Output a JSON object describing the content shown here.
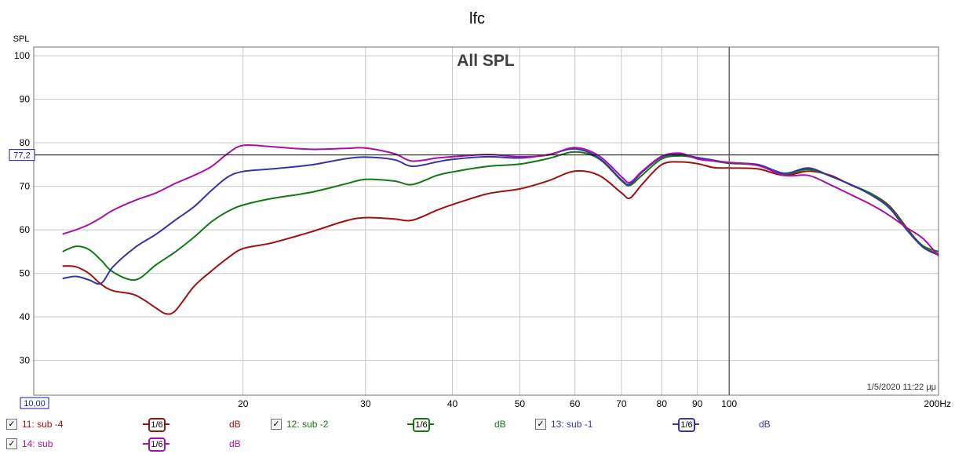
{
  "chart_data": {
    "type": "line",
    "title": "lfc",
    "subtitle": "All SPL",
    "ylabel": "SPL",
    "x_scale": "log",
    "xlim": [
      10,
      200
    ],
    "ylim": [
      22,
      102
    ],
    "x_ticks": [
      {
        "value": 20,
        "label": "20"
      },
      {
        "value": 30,
        "label": "30"
      },
      {
        "value": 40,
        "label": "40"
      },
      {
        "value": 50,
        "label": "50"
      },
      {
        "value": 60,
        "label": "60"
      },
      {
        "value": 70,
        "label": "70"
      },
      {
        "value": 80,
        "label": "80"
      },
      {
        "value": 90,
        "label": "90"
      },
      {
        "value": 100,
        "label": "100"
      },
      {
        "value": 200,
        "label": "200Hz"
      }
    ],
    "x_start_label": "10,00",
    "y_ticks": [
      30,
      40,
      50,
      60,
      70,
      80,
      90,
      100
    ],
    "reference_line": {
      "value": 77.2,
      "label": "77,2"
    },
    "cursor_x": 100,
    "timestamp": "1/5/2020 11:22 μμ",
    "grid": true,
    "series": [
      {
        "name": "11: sub -4",
        "color": "#a01010",
        "x": [
          11,
          11.5,
          12,
          12.5,
          13,
          14,
          15,
          15.5,
          16,
          17,
          18,
          19,
          20,
          22,
          25,
          28,
          30,
          33,
          35,
          38,
          40,
          45,
          50,
          55,
          60,
          65,
          70,
          72,
          75,
          80,
          85,
          90,
          95,
          100,
          110,
          120,
          130,
          140,
          150,
          160,
          170,
          180,
          190,
          200
        ],
        "y": [
          51.7,
          51.5,
          50,
          47.5,
          46,
          45,
          42,
          40.7,
          41.5,
          47,
          50.5,
          53.5,
          55.7,
          57,
          59.5,
          62,
          62.8,
          62.5,
          62.2,
          64.5,
          65.8,
          68.3,
          69.4,
          71.3,
          73.5,
          72.5,
          68.5,
          67.3,
          70.5,
          75,
          75.6,
          75.2,
          74.3,
          74.2,
          74.0,
          72.5,
          73.5,
          72.5,
          70.2,
          68.3,
          65.5,
          60.5,
          56,
          54.5
        ]
      },
      {
        "name": "12: sub -2",
        "color": "#107a10",
        "x": [
          11,
          11.5,
          12,
          12.5,
          13,
          14,
          15,
          16,
          17,
          18,
          19,
          20,
          22,
          25,
          28,
          30,
          33,
          35,
          38,
          40,
          45,
          50,
          55,
          60,
          65,
          70,
          72,
          75,
          80,
          85,
          90,
          95,
          100,
          110,
          120,
          130,
          140,
          150,
          160,
          170,
          180,
          190,
          200
        ],
        "y": [
          55,
          56.2,
          55.5,
          53,
          50.3,
          48.5,
          52,
          55,
          58.3,
          61.8,
          64.2,
          65.7,
          67.2,
          68.6,
          70.5,
          71.6,
          71.2,
          70.4,
          72.5,
          73.3,
          74.6,
          75.1,
          76.4,
          77.9,
          76.3,
          71.3,
          70.2,
          72.6,
          76.3,
          77,
          76.5,
          75.8,
          75.3,
          74.8,
          72.8,
          73.9,
          72.3,
          70.3,
          68.3,
          65.3,
          60.3,
          56.3,
          55.0
        ]
      },
      {
        "name": "13: sub -1",
        "color": "#3535a8",
        "x": [
          11,
          11.5,
          12,
          12.5,
          13,
          14,
          15,
          16,
          17,
          18,
          19,
          20,
          22,
          25,
          28,
          30,
          33,
          35,
          38,
          40,
          45,
          50,
          55,
          60,
          65,
          70,
          72,
          75,
          80,
          85,
          90,
          95,
          100,
          110,
          120,
          130,
          140,
          150,
          160,
          170,
          180,
          190,
          200
        ],
        "y": [
          48.8,
          49.3,
          48.5,
          47.7,
          51.5,
          56,
          59,
          62.3,
          65.3,
          69,
          72.1,
          73.4,
          74,
          74.9,
          76.3,
          76.7,
          76.1,
          74.6,
          75.6,
          76.2,
          76.8,
          76.5,
          77.3,
          78.6,
          76.5,
          71.5,
          70.5,
          73.3,
          76.7,
          77.3,
          76.6,
          76.0,
          75.4,
          75.0,
          73.0,
          74.2,
          72.3,
          70.3,
          68.0,
          65.0,
          60.0,
          56.0,
          54.2
        ]
      },
      {
        "name": "14: sub",
        "color": "#a810a8",
        "x": [
          11,
          11.5,
          12,
          12.5,
          13,
          14,
          15,
          16,
          17,
          18,
          19,
          20,
          22,
          25,
          28,
          30,
          33,
          35,
          38,
          40,
          45,
          50,
          55,
          60,
          65,
          70,
          72,
          75,
          80,
          85,
          90,
          95,
          100,
          110,
          120,
          130,
          140,
          150,
          160,
          170,
          180,
          190,
          200
        ],
        "y": [
          59,
          60,
          61.2,
          62.8,
          64.5,
          66.8,
          68.5,
          70.7,
          72.5,
          74.5,
          77.5,
          79.4,
          79.1,
          78.5,
          78.7,
          78.8,
          77.5,
          75.8,
          76.5,
          76.8,
          77.3,
          76.8,
          77.2,
          78.9,
          77.0,
          72.2,
          70.9,
          73.5,
          76.9,
          77.6,
          76.3,
          75.8,
          75.5,
          74.8,
          72.5,
          72.5,
          70.3,
          68.0,
          65.8,
          63.3,
          60.5,
          58.0,
          54.0
        ]
      }
    ]
  },
  "legend": {
    "items": [
      {
        "label": "11: sub -4",
        "smooth": "1/6",
        "unit": "dB",
        "checked": "✓",
        "color": "#a01010"
      },
      {
        "label": "12: sub -2",
        "smooth": "1/6",
        "unit": "dB",
        "checked": "✓",
        "color": "#107a10"
      },
      {
        "label": "13: sub -1",
        "smooth": "1/6",
        "unit": "dB",
        "checked": "✓",
        "color": "#3535a8"
      },
      {
        "label": "14: sub",
        "smooth": "1/6",
        "unit": "dB",
        "checked": "✓",
        "color": "#a810a8"
      }
    ]
  }
}
